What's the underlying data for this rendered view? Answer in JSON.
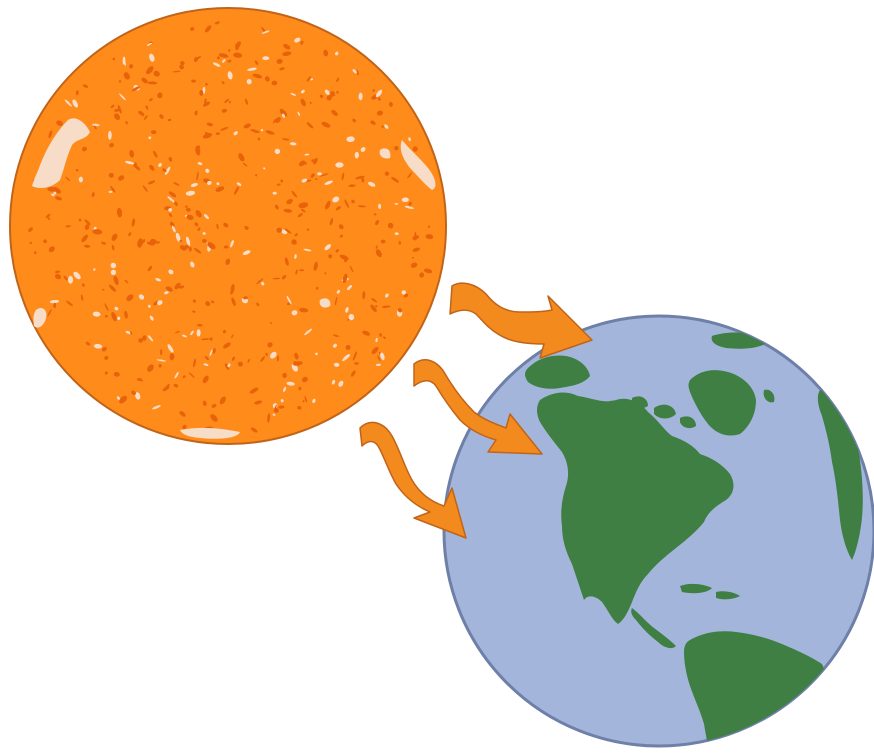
{
  "diagram": {
    "sun": {
      "icon": "sun-icon",
      "fill_color": "#FF8C1A",
      "edge_color": "#C0641A",
      "spot_light_color": "#F7DCC8",
      "spot_dark_color": "#E8620A"
    },
    "earth": {
      "icon": "globe-americas-icon",
      "ocean_color": "#A4B5DC",
      "land_color": "#3F7F43",
      "edge_color": "#6E7FA8"
    },
    "arrows": {
      "count": 3,
      "icon": "wavy-arrow-icon",
      "fill_color": "#F28A1E",
      "edge_color": "#C0641A"
    }
  }
}
